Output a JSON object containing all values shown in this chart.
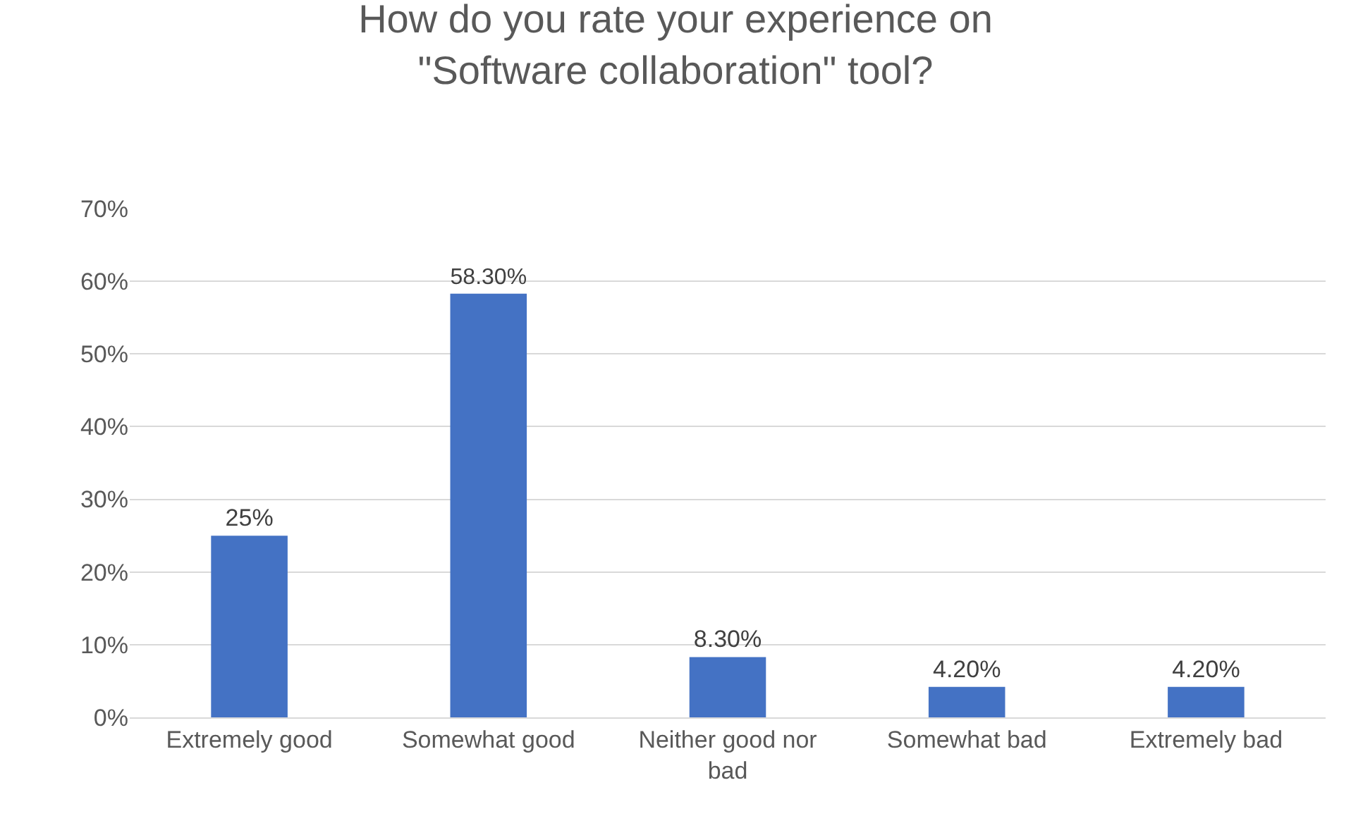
{
  "chart_data": {
    "type": "bar",
    "title": "How do you rate your experience on \"Software collaboration\" tool?",
    "categories": [
      "Extremely good",
      "Somewhat good",
      "Neither good nor bad",
      "Somewhat bad",
      "Extremely bad"
    ],
    "values": [
      25,
      58.3,
      8.3,
      4.2,
      4.2
    ],
    "value_labels": [
      "25%",
      "58.30%",
      "8.30%",
      "4.20%",
      "4.20%"
    ],
    "color": "#4472c4",
    "ylim": [
      0,
      70
    ],
    "yticks": [
      {
        "value": 0,
        "label": "0%"
      },
      {
        "value": 10,
        "label": "10%"
      },
      {
        "value": 20,
        "label": "20%"
      },
      {
        "value": 30,
        "label": "30%"
      },
      {
        "value": 40,
        "label": "40%"
      },
      {
        "value": 50,
        "label": "50%"
      },
      {
        "value": 60,
        "label": "60%"
      },
      {
        "value": 70,
        "label": "70%"
      }
    ],
    "grid": "y"
  }
}
